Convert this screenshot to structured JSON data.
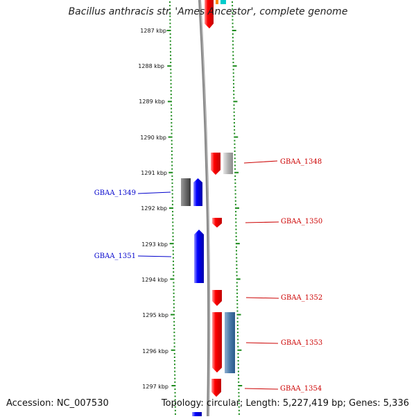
{
  "title": "Bacillus anthracis str. 'Ames Ancestor', complete genome",
  "accession": "Accession: NC_007530",
  "summary": "Topology: circular; Length: 5,227,419 bp; Genes: 5,336",
  "kbp_labels": [
    "1287 kbp",
    "1288 kbp",
    "1289 kbp",
    "1290 kbp",
    "1291 kbp",
    "1292 kbp",
    "1293 kbp",
    "1294 kbp",
    "1295 kbp",
    "1296 kbp",
    "1297 kbp"
  ],
  "genes": [
    {
      "name": "GBAA_1348",
      "strand": "forward",
      "color": "#cc0000"
    },
    {
      "name": "GBAA_1349",
      "strand": "reverse",
      "color": "#0000cc"
    },
    {
      "name": "GBAA_1350",
      "strand": "forward",
      "color": "#cc0000"
    },
    {
      "name": "GBAA_1351",
      "strand": "reverse",
      "color": "#0000cc"
    },
    {
      "name": "GBAA_1352",
      "strand": "forward",
      "color": "#cc0000"
    },
    {
      "name": "GBAA_1353",
      "strand": "forward",
      "color": "#cc0000"
    },
    {
      "name": "GBAA_1354",
      "strand": "forward",
      "color": "#cc0000"
    }
  ],
  "colors": {
    "forward_cds": "#ff0000",
    "reverse_cds": "#0000ff",
    "ruler": "#1a8a1a",
    "backbone": "#888888",
    "other_feature": "#4477aa",
    "grey_feature": "#999999"
  }
}
